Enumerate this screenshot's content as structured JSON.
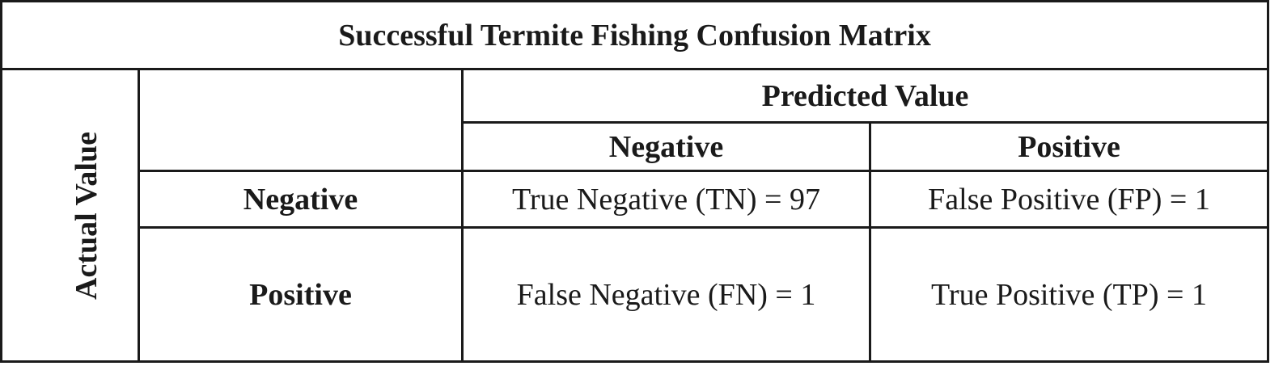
{
  "title": "Successful Termite Fishing Confusion Matrix",
  "axes": {
    "actual_label": "Actual Value",
    "predicted_label": "Predicted Value"
  },
  "columns": [
    "Negative",
    "Positive"
  ],
  "rows": [
    {
      "label": "Negative",
      "cells": [
        "True Negative (TN) = 97",
        "False Positive (FP) = 1"
      ]
    },
    {
      "label": "Positive",
      "cells": [
        "False Negative (FN) = 1",
        "True Positive (TP) = 1"
      ]
    }
  ],
  "chart_data": {
    "type": "table",
    "title": "Successful Termite Fishing Confusion Matrix",
    "row_axis": "Actual Value",
    "column_axis": "Predicted Value",
    "categories": [
      "Negative",
      "Positive"
    ],
    "matrix": [
      [
        97,
        1
      ],
      [
        1,
        1
      ]
    ],
    "cell_names": [
      [
        "True Negative (TN)",
        "False Positive (FP)"
      ],
      [
        "False Negative (FN)",
        "True Positive (TP)"
      ]
    ]
  }
}
